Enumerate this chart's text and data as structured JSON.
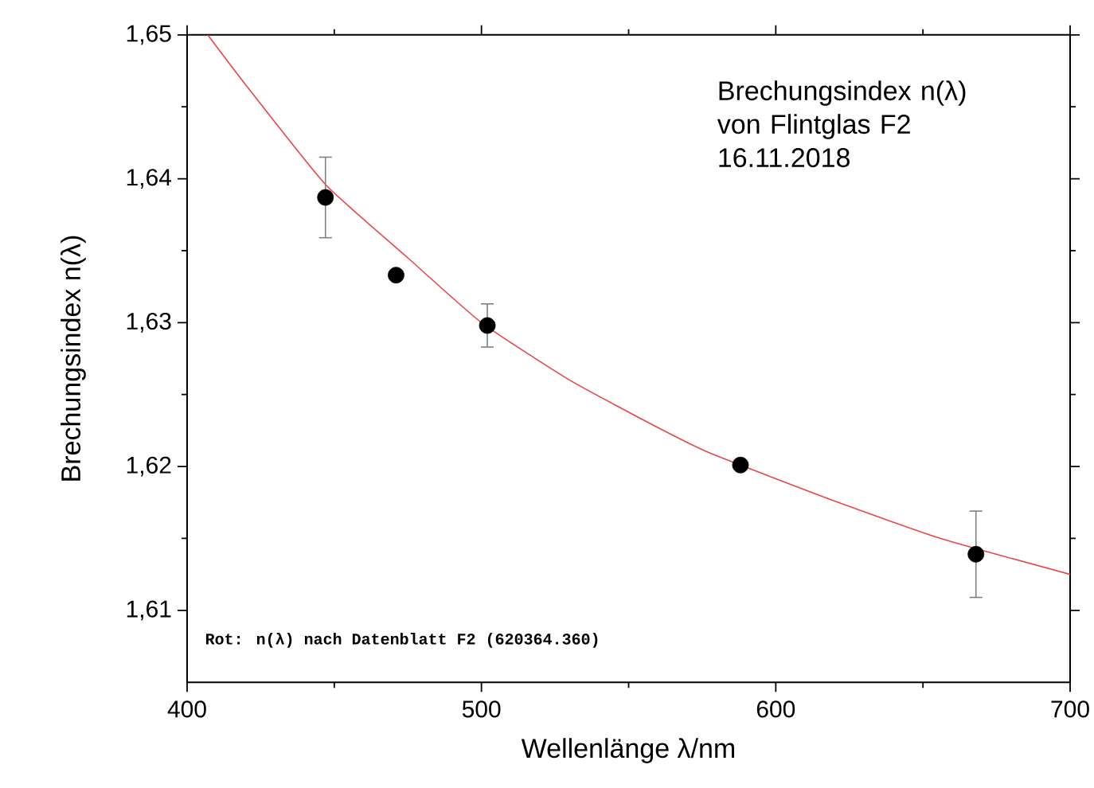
{
  "chart_data": {
    "type": "scatter",
    "title": "Brechungsindex n(λ) von Flintglas F2",
    "subtitle": "16.11.2018",
    "xlabel": "Wellenlänge λ/nm",
    "ylabel": "Brechungsindex n(λ)",
    "annotations": [
      "Rot: n(λ) nach Datenblatt F2 (620364.360)"
    ],
    "xlim": [
      400,
      700
    ],
    "ylim": [
      1.605,
      1.65
    ],
    "xticks": [
      400,
      {
        "value": 450,
        "label": null
      },
      500,
      {
        "value": 550,
        "label": null
      },
      600,
      {
        "value": 650,
        "label": null
      },
      700
    ],
    "yticks": [
      {
        "value": 1.61,
        "label": "1,61"
      },
      {
        "value": 1.615,
        "label": null
      },
      {
        "value": 1.62,
        "label": "1,62"
      },
      {
        "value": 1.625,
        "label": null
      },
      {
        "value": 1.63,
        "label": "1,63"
      },
      {
        "value": 1.635,
        "label": null
      },
      {
        "value": 1.64,
        "label": "1,64"
      },
      {
        "value": 1.645,
        "label": null
      },
      {
        "value": 1.65,
        "label": "1,65"
      }
    ],
    "series": [
      {
        "type": "line",
        "color": "#e8474a",
        "marker": "none",
        "line_style": "solid",
        "x": [
          407,
          420,
          447,
          475,
          500,
          530,
          560,
          578,
          620,
          656,
          700
        ],
        "values": [
          1.65,
          1.6465,
          1.6396,
          1.6345,
          1.63,
          1.626,
          1.6227,
          1.6209,
          1.6176,
          1.615,
          1.6125
        ]
      },
      {
        "color": "#000000",
        "marker": "circle",
        "x": [
          447,
          471,
          502,
          588,
          668
        ],
        "values": [
          1.6387,
          1.6333,
          1.6298,
          1.6201,
          1.6139
        ],
        "errors": [
          0.0028,
          null,
          0.0015,
          null,
          0.003
        ]
      }
    ]
  }
}
